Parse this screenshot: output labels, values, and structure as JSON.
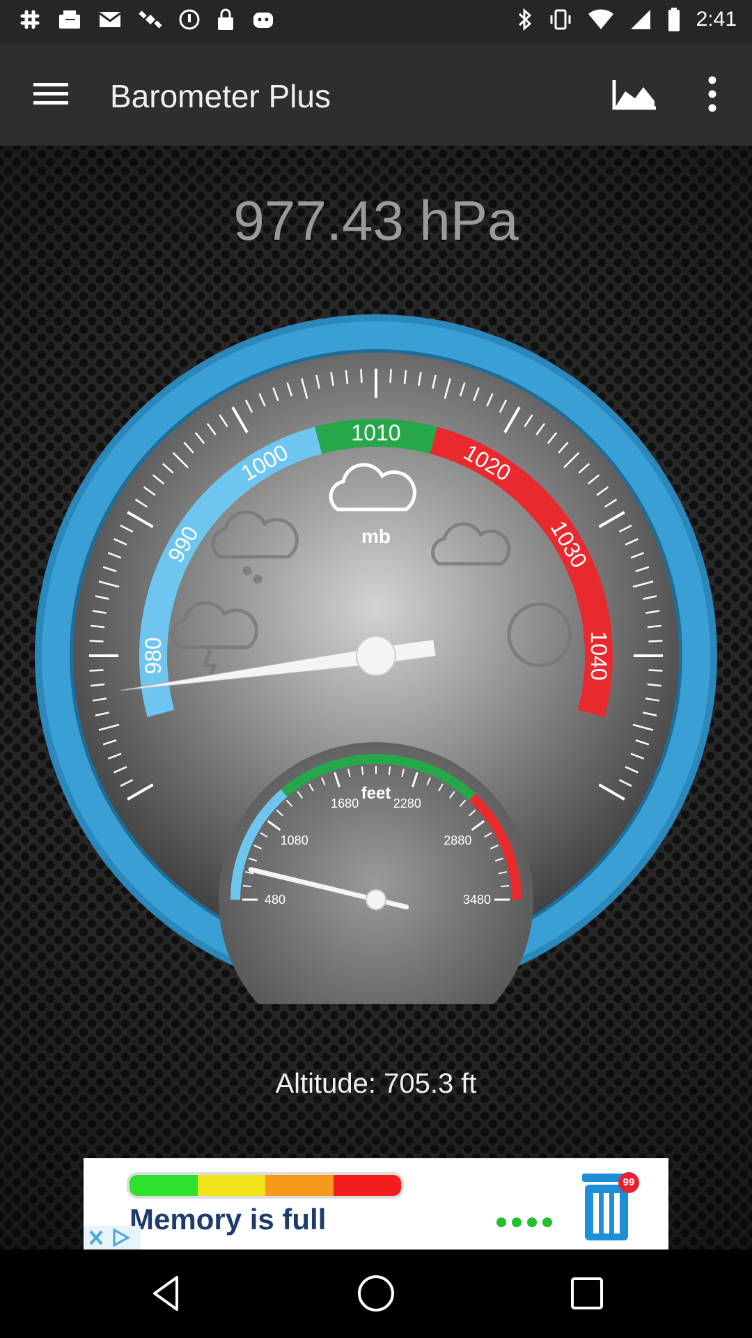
{
  "status_bar": {
    "time": "2:41",
    "left_icons": [
      "slack-icon",
      "fax-icon",
      "mail-icon",
      "satellite-icon",
      "circle-icon",
      "lock-icon",
      "robot-icon"
    ],
    "right_icons": [
      "bluetooth-icon",
      "vibrate-icon",
      "wifi-icon",
      "signal-icon",
      "battery-icon"
    ]
  },
  "app_bar": {
    "title": "Barometer Plus",
    "icons": [
      "menu-icon",
      "chart-icon",
      "more-vert-icon"
    ]
  },
  "pressure": {
    "readout": "977.43 hPa",
    "value_hpa": 977.43
  },
  "gauge": {
    "unit_label": "mb",
    "scale_labels": [
      "980",
      "990",
      "1000",
      "1010",
      "1020",
      "1030",
      "1040"
    ],
    "scale_min": 970,
    "scale_max": 1050,
    "needle_value": 977.43,
    "zones": [
      {
        "name": "low",
        "from": 975,
        "to": 1005,
        "color": "#6ec6f0"
      },
      {
        "name": "normal",
        "from": 1005,
        "to": 1015,
        "color": "#26a84a"
      },
      {
        "name": "high",
        "from": 1015,
        "to": 1045,
        "color": "#e82a2f"
      }
    ],
    "ring_color": "#2f93c9",
    "weather_icons": [
      "cloud-icon",
      "snow-cloud-icon",
      "partly-cloudy-icon",
      "storm-cloud-icon",
      "moon-icon"
    ]
  },
  "altimeter": {
    "unit_label": "feet",
    "scale_labels": [
      "480",
      "1080",
      "1680",
      "2280",
      "2880",
      "3480"
    ],
    "scale_min": 480,
    "scale_max": 3480,
    "needle_value": 705.3,
    "zones": [
      {
        "name": "low",
        "from": 480,
        "to": 1300,
        "color": "#6ec6f0"
      },
      {
        "name": "mid",
        "from": 1300,
        "to": 2700,
        "color": "#26a84a"
      },
      {
        "name": "high",
        "from": 2700,
        "to": 3480,
        "color": "#e82a2f"
      }
    ]
  },
  "altitude": {
    "text": "Altitude: 705.3 ft"
  },
  "ad": {
    "text": "Memory is full",
    "badge": "99",
    "bar_colors": [
      "#2ee02e",
      "#f2e21a",
      "#f59a1a",
      "#f21c1c"
    ]
  },
  "nav_bar": {
    "icons": [
      "back-icon",
      "home-icon",
      "recents-icon"
    ]
  }
}
